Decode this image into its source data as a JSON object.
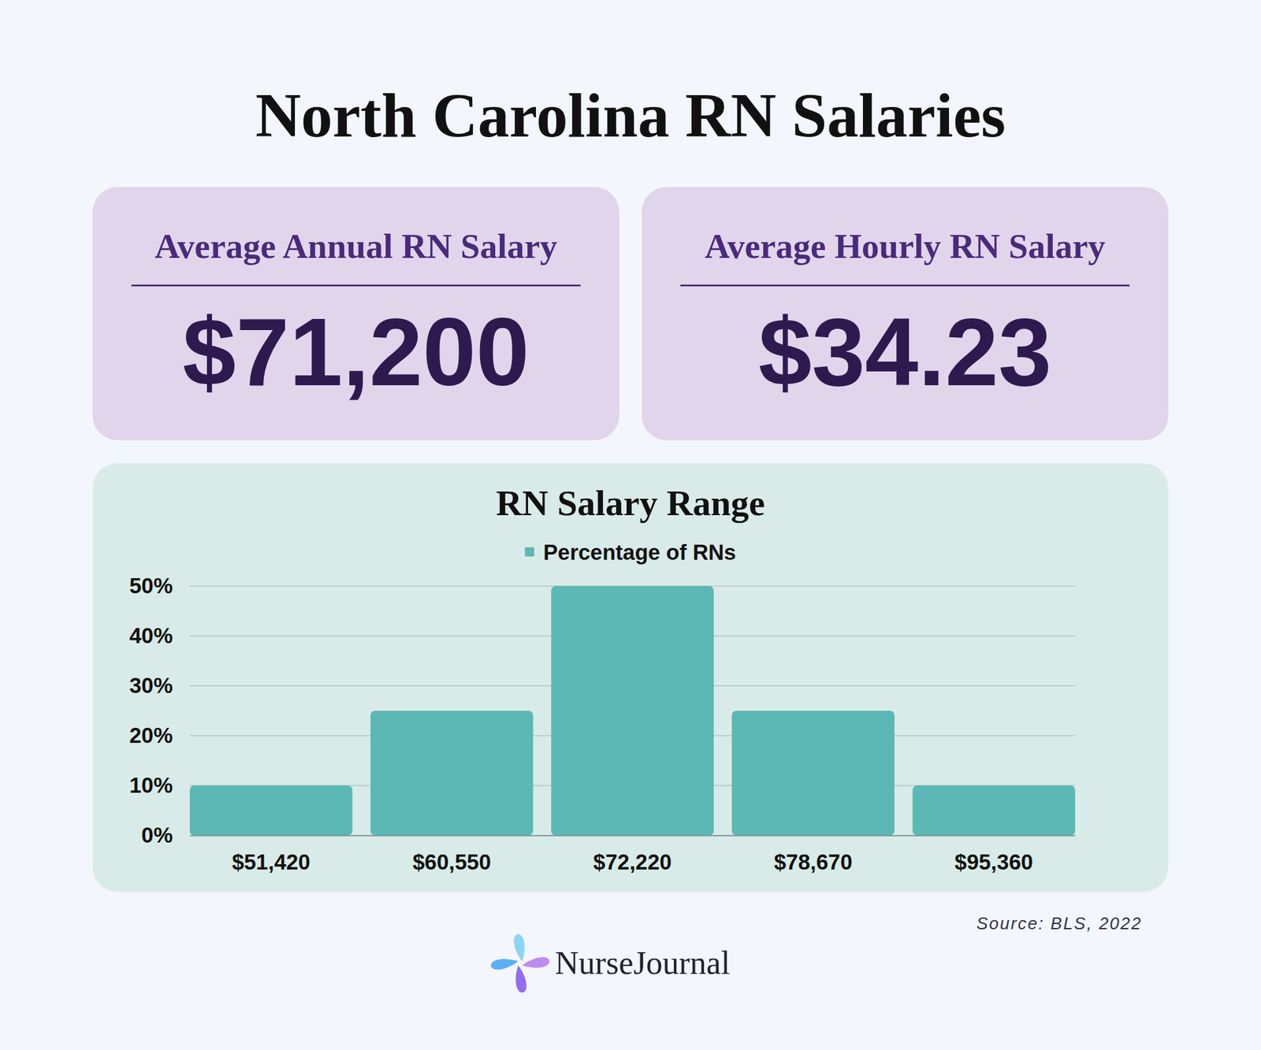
{
  "header": {
    "title": "North Carolina RN Salaries"
  },
  "cards": [
    {
      "label": "Average Annual RN Salary",
      "value": "$71,200"
    },
    {
      "label": "Average Hourly RN Salary",
      "value": "$34.23"
    }
  ],
  "chart_data": {
    "type": "bar",
    "title": "RN Salary Range",
    "categories": [
      "$51,420",
      "$60,550",
      "$72,220",
      "$78,670",
      "$95,360"
    ],
    "series": [
      {
        "name": "Percentage of RNs",
        "color": "#5bb8b4",
        "values": [
          10,
          25,
          50,
          25,
          10
        ]
      }
    ],
    "ylim": [
      0,
      50
    ],
    "yticks": [
      {
        "value": 0,
        "label": "0%"
      },
      {
        "value": 10,
        "label": "10%"
      },
      {
        "value": 20,
        "label": "20%"
      },
      {
        "value": 30,
        "label": "30%"
      },
      {
        "value": 40,
        "label": "40%"
      },
      {
        "value": 50,
        "label": "50%"
      }
    ],
    "grid": true,
    "legend": "top"
  },
  "footer": {
    "source": "Source: BLS, 2022",
    "brand": "NurseJournal"
  }
}
